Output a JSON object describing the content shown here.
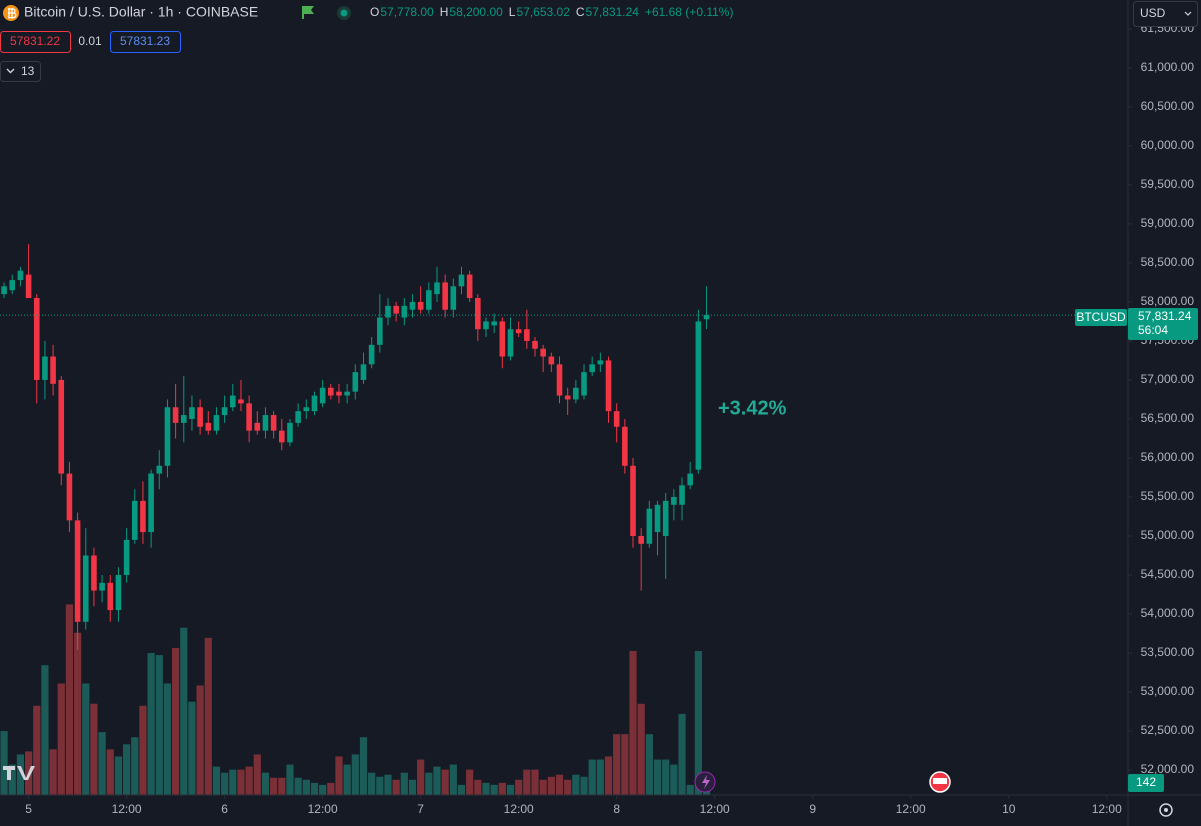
{
  "chart_data": {
    "type": "candlestick",
    "title": "Bitcoin / U.S. Dollar · 1h · COINBASE",
    "ohlc_legend": [
      {
        "label": "O",
        "value": "57,778.00"
      },
      {
        "label": "H",
        "value": "58,200.00"
      },
      {
        "label": "L",
        "value": "57,653.02"
      },
      {
        "label": "C",
        "value": "57,831.24"
      }
    ],
    "change": "+61.68 (+0.11%)",
    "bid": "57831.22",
    "spread": "0.01",
    "ask": "57831.23",
    "indicators": "13",
    "currency": "USD",
    "symbol_tag": "BTCUSD",
    "last_price_label": "57,831.24",
    "countdown": "56:04",
    "annotation": "+3.42%",
    "up_color": "#089981",
    "down_color": "#f23645",
    "up_volume_color": "#1b5c58",
    "down_volume_color": "#7b2f37",
    "grid": false,
    "open": [
      58100,
      58150,
      58280,
      58350,
      58050,
      57000,
      57300,
      57000,
      55800,
      55200,
      53900,
      54750,
      54300,
      54400,
      54050,
      54500,
      54950,
      55450,
      55050,
      55800,
      55900,
      56650,
      56450,
      56500,
      56650,
      56450,
      56350,
      56550,
      56650,
      56750,
      56700,
      56450,
      56350,
      56550,
      56350,
      56200,
      56450,
      56600,
      56600,
      56700,
      56900,
      56850,
      56800,
      56850,
      57000,
      57200,
      57450,
      57800,
      57950,
      57800,
      57900,
      58000,
      57900,
      58100,
      58250,
      57900,
      58200,
      58350,
      58050,
      57650,
      57700,
      57750,
      57300,
      57650,
      57650,
      57500,
      57400,
      57300,
      57200,
      56800,
      56750,
      56800,
      57100,
      57200,
      57250,
      56600,
      56400,
      55900,
      55000,
      54900,
      55050,
      55000,
      55400,
      55400,
      55650,
      55850,
      57778
    ],
    "high": [
      58250,
      58350,
      58450,
      58740,
      58100,
      57500,
      57450,
      57050,
      55950,
      55300,
      55100,
      54850,
      54500,
      54500,
      54600,
      55100,
      55600,
      55700,
      55850,
      56100,
      56750,
      56950,
      57050,
      56800,
      56750,
      56600,
      56650,
      56800,
      56950,
      57000,
      56800,
      56600,
      56650,
      56600,
      56500,
      56500,
      56700,
      56750,
      56850,
      57000,
      56950,
      56950,
      56950,
      57200,
      57350,
      57550,
      58100,
      58050,
      58000,
      58050,
      58100,
      58200,
      58250,
      58450,
      58350,
      58300,
      58450,
      58400,
      58100,
      57800,
      57850,
      57800,
      57800,
      57750,
      57900,
      57550,
      57450,
      57350,
      57300,
      56900,
      57000,
      57200,
      57300,
      57350,
      57300,
      56700,
      56500,
      56000,
      55100,
      55450,
      55450,
      55550,
      55600,
      55750,
      55950,
      57900,
      58200
    ],
    "low": [
      58050,
      58100,
      58200,
      58150,
      56700,
      56750,
      56800,
      55650,
      55050,
      53540,
      53800,
      54100,
      54150,
      53900,
      53900,
      54400,
      54900,
      54900,
      54850,
      55600,
      55750,
      56250,
      56200,
      56350,
      56300,
      56300,
      56300,
      56450,
      56600,
      56600,
      56200,
      56300,
      56250,
      56250,
      56100,
      56150,
      56400,
      56500,
      56550,
      56650,
      56750,
      56700,
      56700,
      56750,
      56950,
      57150,
      57350,
      57700,
      57750,
      57700,
      57800,
      57850,
      57850,
      58000,
      57800,
      57800,
      58100,
      58000,
      57500,
      57550,
      57600,
      57150,
      57250,
      57550,
      57400,
      57300,
      57100,
      57100,
      56700,
      56550,
      56700,
      56750,
      57050,
      57100,
      56450,
      56200,
      55800,
      54850,
      54300,
      54850,
      54750,
      54450,
      55200,
      55200,
      55600,
      55800,
      57653.02
    ],
    "close": [
      58200,
      58280,
      58400,
      58050,
      57000,
      57300,
      56950,
      55800,
      55200,
      53900,
      54750,
      54300,
      54400,
      54050,
      54500,
      54950,
      55450,
      55050,
      55800,
      55900,
      56650,
      56450,
      56550,
      56650,
      56400,
      56350,
      56550,
      56650,
      56800,
      56700,
      56350,
      56350,
      56550,
      56350,
      56200,
      56450,
      56600,
      56650,
      56800,
      56900,
      56800,
      56800,
      56850,
      57100,
      57200,
      57450,
      57800,
      57950,
      57850,
      57950,
      58000,
      57900,
      58150,
      58250,
      57900,
      58200,
      58350,
      58050,
      57650,
      57750,
      57750,
      57300,
      57650,
      57600,
      57500,
      57400,
      57300,
      57200,
      56800,
      56750,
      56900,
      57100,
      57200,
      57250,
      56600,
      56400,
      55900,
      55000,
      54900,
      55350,
      55400,
      55450,
      55500,
      55650,
      55800,
      57750,
      57831.24
    ],
    "volume": [
      756,
      360,
      480,
      516,
      1056,
      1536,
      540,
      1320,
      2256,
      1920,
      1320,
      1080,
      744,
      540,
      456,
      600,
      684,
      1056,
      1680,
      1656,
      1320,
      1740,
      1980,
      1104,
      1296,
      1860,
      336,
      264,
      300,
      300,
      336,
      480,
      264,
      204,
      204,
      360,
      204,
      180,
      144,
      120,
      144,
      456,
      360,
      480,
      684,
      264,
      216,
      240,
      180,
      264,
      180,
      420,
      264,
      336,
      300,
      360,
      120,
      300,
      180,
      144,
      120,
      144,
      120,
      180,
      300,
      300,
      180,
      216,
      240,
      180,
      240,
      216,
      420,
      420,
      456,
      720,
      720,
      1704,
      1080,
      720,
      420,
      420,
      360,
      960,
      120,
      1704,
      142
    ],
    "xlim": [
      -0.5,
      137.6
    ],
    "xticks": [
      {
        "value": 3,
        "label": "5"
      },
      {
        "value": 15,
        "label": "12:00"
      },
      {
        "value": 27,
        "label": "6"
      },
      {
        "value": 39,
        "label": "12:00"
      },
      {
        "value": 51,
        "label": "7"
      },
      {
        "value": 63,
        "label": "12:00"
      },
      {
        "value": 75,
        "label": "8"
      },
      {
        "value": 87,
        "label": "12:00"
      },
      {
        "value": 99,
        "label": "9"
      },
      {
        "value": 111,
        "label": "12:00"
      },
      {
        "value": 123,
        "label": "10"
      },
      {
        "value": 135,
        "label": "12:00"
      }
    ],
    "ylim": [
      51680,
      61870
    ],
    "yticks": [
      {
        "value": 52000,
        "label": "52,000.00"
      },
      {
        "value": 52500,
        "label": "52,500.00"
      },
      {
        "value": 53000,
        "label": "53,000.00"
      },
      {
        "value": 53500,
        "label": "53,500.00"
      },
      {
        "value": 54000,
        "label": "54,000.00"
      },
      {
        "value": 54500,
        "label": "54,500.00"
      },
      {
        "value": 55000,
        "label": "55,000.00"
      },
      {
        "value": 55500,
        "label": "55,500.00"
      },
      {
        "value": 56000,
        "label": "56,000.00"
      },
      {
        "value": 56500,
        "label": "56,500.00"
      },
      {
        "value": 57000,
        "label": "57,000.00"
      },
      {
        "value": 57500,
        "label": "57,500.00"
      },
      {
        "value": 58000,
        "label": "58,000.00"
      },
      {
        "value": 58500,
        "label": "58,500.00"
      },
      {
        "value": 59000,
        "label": "59,000.00"
      },
      {
        "value": 59500,
        "label": "59,500.00"
      },
      {
        "value": 60000,
        "label": "60,000.00"
      },
      {
        "value": 60500,
        "label": "60,500.00"
      },
      {
        "value": 61000,
        "label": "61,000.00"
      },
      {
        "value": 61500,
        "label": "61,500.00"
      }
    ]
  }
}
